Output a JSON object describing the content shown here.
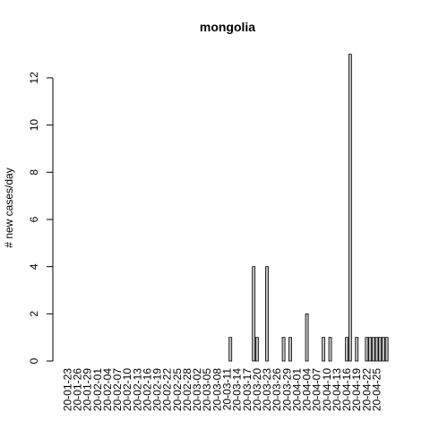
{
  "chart_data": {
    "type": "bar",
    "title": "mongolia",
    "xlabel": "",
    "ylabel": "# new cases/day",
    "ylim": [
      0,
      13
    ],
    "yticks": [
      0,
      2,
      4,
      6,
      8,
      10,
      12
    ],
    "grid": false,
    "legend": "none",
    "bar_fill": "#bebebe",
    "bar_stroke": "#000000",
    "start_date": "2020-01-23",
    "x_tick_labels": [
      "20-01-23",
      "20-01-26",
      "20-01-29",
      "20-02-01",
      "20-02-04",
      "20-02-07",
      "20-02-10",
      "20-02-13",
      "20-02-16",
      "20-02-19",
      "20-02-22",
      "20-02-25",
      "20-02-28",
      "20-03-02",
      "20-03-05",
      "20-03-08",
      "20-03-11",
      "20-03-14",
      "20-03-17",
      "20-03-20",
      "20-03-23",
      "20-03-26",
      "20-03-29",
      "20-04-01",
      "20-04-04",
      "20-04-07",
      "20-04-10",
      "20-04-13",
      "20-04-16",
      "20-04-19",
      "20-04-22",
      "20-04-25"
    ],
    "values": [
      0,
      0,
      0,
      0,
      0,
      0,
      0,
      0,
      0,
      0,
      0,
      0,
      0,
      0,
      0,
      0,
      0,
      0,
      0,
      0,
      0,
      0,
      0,
      0,
      0,
      0,
      0,
      0,
      0,
      0,
      0,
      0,
      0,
      0,
      0,
      0,
      0,
      0,
      0,
      0,
      0,
      0,
      0,
      0,
      0,
      0,
      0,
      0,
      0,
      1,
      0,
      0,
      0,
      0,
      0,
      0,
      4,
      1,
      0,
      0,
      4,
      0,
      0,
      0,
      0,
      1,
      0,
      1,
      0,
      0,
      0,
      0,
      2,
      0,
      0,
      0,
      0,
      1,
      0,
      1,
      0,
      0,
      0,
      0,
      1,
      13,
      0,
      1,
      0,
      0,
      1,
      1,
      1,
      1,
      1,
      1,
      1
    ]
  }
}
